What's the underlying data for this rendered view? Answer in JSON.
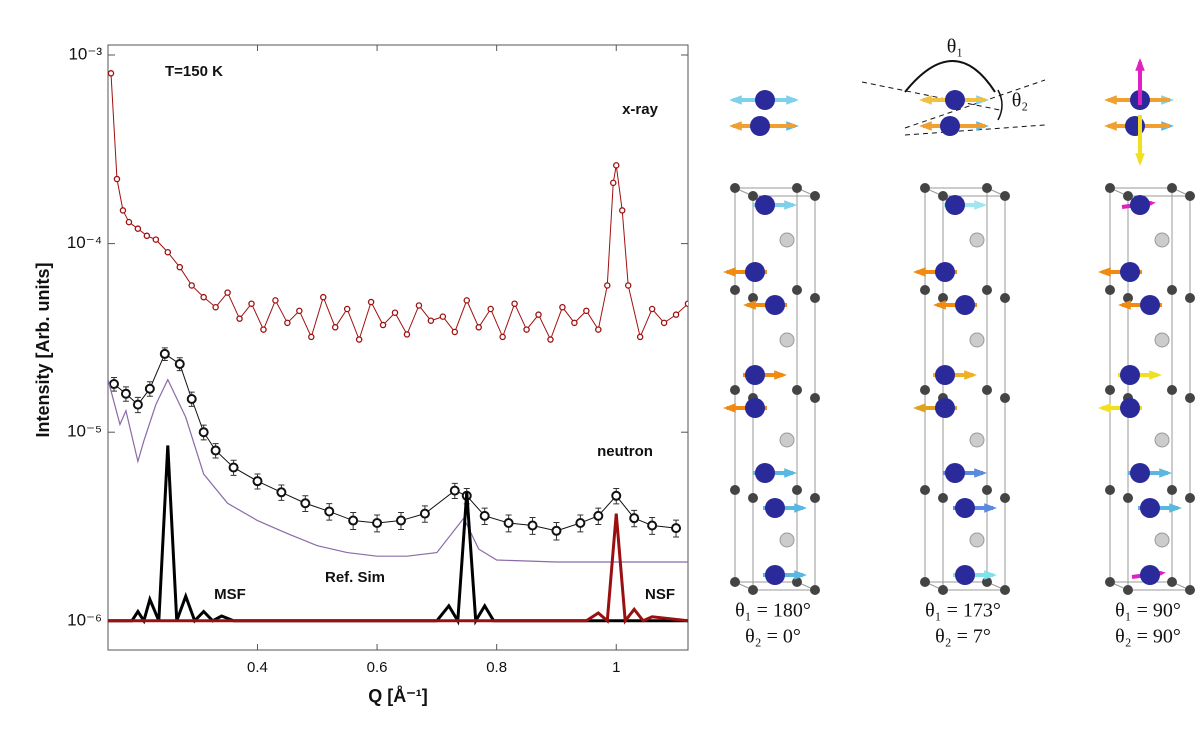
{
  "chart_data": {
    "type": "line",
    "log_y": true,
    "x_label": "Q [Å⁻¹]",
    "y_label": "Intensity [Arb. units]",
    "xlim": [
      0.15,
      1.12
    ],
    "xticks": [
      0.4,
      0.6,
      0.8,
      1
    ],
    "ylim": [
      7e-07,
      0.00113
    ],
    "yticks": [
      {
        "value": 1e-06,
        "label": "10⁻⁶"
      },
      {
        "value": 1e-05,
        "label": "10⁻⁵"
      },
      {
        "value": 0.0001,
        "label": "10⁻⁴"
      },
      {
        "value": 0.001,
        "label": "10⁻³"
      }
    ],
    "annotations": [
      "T=150 K"
    ],
    "series": [
      {
        "name": "x-ray",
        "color": "#a01010",
        "markers": true,
        "x": [
          0.155,
          0.165,
          0.175,
          0.185,
          0.2,
          0.215,
          0.23,
          0.25,
          0.27,
          0.29,
          0.31,
          0.33,
          0.35,
          0.37,
          0.39,
          0.41,
          0.43,
          0.45,
          0.47,
          0.49,
          0.51,
          0.53,
          0.55,
          0.57,
          0.59,
          0.61,
          0.63,
          0.65,
          0.67,
          0.69,
          0.71,
          0.73,
          0.75,
          0.77,
          0.79,
          0.81,
          0.83,
          0.85,
          0.87,
          0.89,
          0.91,
          0.93,
          0.95,
          0.97,
          0.985,
          0.995,
          1.0,
          1.01,
          1.02,
          1.04,
          1.06,
          1.08,
          1.1,
          1.12
        ],
        "values": [
          0.0008,
          0.00022,
          0.00015,
          0.00013,
          0.00012,
          0.00011,
          0.000105,
          9e-05,
          7.5e-05,
          6e-05,
          5.2e-05,
          4.6e-05,
          5.5e-05,
          4e-05,
          4.8e-05,
          3.5e-05,
          5e-05,
          3.8e-05,
          4.4e-05,
          3.2e-05,
          5.2e-05,
          3.6e-05,
          4.5e-05,
          3.1e-05,
          4.9e-05,
          3.7e-05,
          4.3e-05,
          3.3e-05,
          4.7e-05,
          3.9e-05,
          4.1e-05,
          3.4e-05,
          5e-05,
          3.6e-05,
          4.5e-05,
          3.2e-05,
          4.8e-05,
          3.5e-05,
          4.2e-05,
          3.1e-05,
          4.6e-05,
          3.8e-05,
          4.4e-05,
          3.5e-05,
          6e-05,
          0.00021,
          0.00026,
          0.00015,
          6e-05,
          3.2e-05,
          4.5e-05,
          3.8e-05,
          4.2e-05,
          4.8e-05
        ]
      },
      {
        "name": "neutron",
        "color": "#111111",
        "markers": true,
        "x": [
          0.16,
          0.18,
          0.2,
          0.22,
          0.245,
          0.27,
          0.29,
          0.31,
          0.33,
          0.36,
          0.4,
          0.44,
          0.48,
          0.52,
          0.56,
          0.6,
          0.64,
          0.68,
          0.73,
          0.75,
          0.78,
          0.82,
          0.86,
          0.9,
          0.94,
          0.97,
          1.0,
          1.03,
          1.06,
          1.1
        ],
        "values": [
          1.8e-05,
          1.6e-05,
          1.4e-05,
          1.7e-05,
          2.6e-05,
          2.3e-05,
          1.5e-05,
          1e-05,
          8e-06,
          6.5e-06,
          5.5e-06,
          4.8e-06,
          4.2e-06,
          3.8e-06,
          3.4e-06,
          3.3e-06,
          3.4e-06,
          3.7e-06,
          4.9e-06,
          4.6e-06,
          3.6e-06,
          3.3e-06,
          3.2e-06,
          3e-06,
          3.3e-06,
          3.6e-06,
          4.6e-06,
          3.5e-06,
          3.2e-06,
          3.1e-06
        ],
        "errors": [
          1.5e-06,
          1.4e-06,
          1.3e-06,
          1.5e-06,
          2e-06,
          1.8e-06,
          1.3e-06,
          9e-07,
          7e-07,
          6e-07,
          5e-07,
          4.5e-07,
          4e-07,
          3.8e-07,
          3.5e-07,
          3.4e-07,
          3.5e-07,
          3.7e-07,
          4.5e-07,
          4.3e-07,
          3.6e-07,
          3.4e-07,
          3.3e-07,
          3.2e-07,
          3.4e-07,
          3.6e-07,
          4.3e-07,
          3.5e-07,
          3.3e-07,
          3.2e-07
        ]
      },
      {
        "name": "Ref. Sim",
        "color": "#8a6aa8",
        "markers": false,
        "x": [
          0.15,
          0.17,
          0.18,
          0.2,
          0.21,
          0.23,
          0.25,
          0.28,
          0.31,
          0.35,
          0.4,
          0.45,
          0.5,
          0.55,
          0.6,
          0.65,
          0.7,
          0.745,
          0.77,
          0.8,
          0.9,
          1.0,
          1.12
        ],
        "values": [
          1.9e-05,
          1.1e-05,
          1.3e-05,
          7e-06,
          9e-06,
          1.4e-05,
          1.9e-05,
          1.2e-05,
          6e-06,
          4.2e-06,
          3.4e-06,
          2.9e-06,
          2.5e-06,
          2.3e-06,
          2.2e-06,
          2.2e-06,
          2.3e-06,
          3.5e-06,
          2.4e-06,
          2.1e-06,
          2.05e-06,
          2.05e-06,
          2.05e-06
        ]
      },
      {
        "name": "MSF",
        "color": "#000000",
        "markers": false,
        "x": [
          0.15,
          0.19,
          0.2,
          0.21,
          0.22,
          0.235,
          0.25,
          0.265,
          0.28,
          0.295,
          0.31,
          0.325,
          0.34,
          0.36,
          0.7,
          0.72,
          0.735,
          0.75,
          0.765,
          0.78,
          0.795,
          1.12
        ],
        "values": [
          1e-06,
          1e-06,
          1.12e-06,
          1e-06,
          1.3e-06,
          1e-06,
          8.5e-06,
          1e-06,
          1.35e-06,
          1e-06,
          1.12e-06,
          1e-06,
          1.06e-06,
          1e-06,
          1e-06,
          1.2e-06,
          1e-06,
          4.8e-06,
          1e-06,
          1.2e-06,
          1e-06,
          1e-06
        ]
      },
      {
        "name": "NSF",
        "color": "#9a1010",
        "markers": false,
        "x": [
          0.15,
          0.95,
          0.97,
          0.985,
          1.0,
          1.015,
          1.03,
          1.045,
          1.06,
          1.12
        ],
        "values": [
          1e-06,
          1e-06,
          1.1e-06,
          1e-06,
          3.7e-06,
          1e-06,
          1.15e-06,
          1e-06,
          1.05e-06,
          1e-06
        ]
      }
    ]
  },
  "angle_labels": {
    "theta1": "θ₁",
    "theta2": "θ₂"
  },
  "panels": [
    {
      "theta1": "θ₁ = 180°",
      "theta2": "θ₂ = 0°"
    },
    {
      "theta1": "θ₁ = 173°",
      "theta2": "θ₂ = 7°"
    },
    {
      "theta1": "θ₁ = 90°",
      "theta2": "θ₂ = 90°"
    }
  ]
}
